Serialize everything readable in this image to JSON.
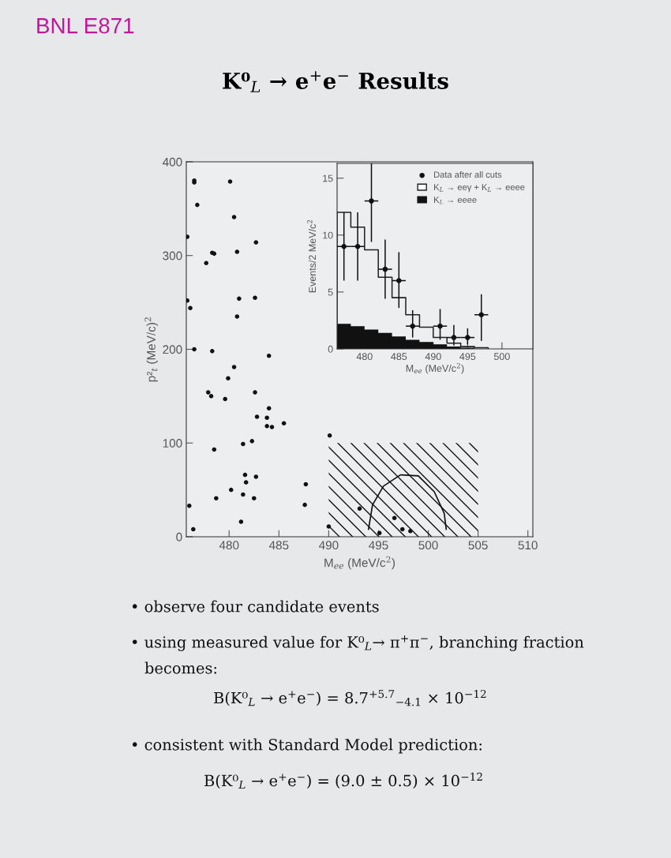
{
  "chart_data": [
    {
      "type": "scatter",
      "title": "K⁰$_{L}$ → e$^{+}$e$^{−}$ Results",
      "xlabel": "M$_{ee}$ (MeV/c$^{2}$)",
      "ylabel": "p²$_{t}$ (MeV/c)$^{2}$",
      "xlim": [
        475.7,
        510.5
      ],
      "ylim": [
        0,
        400
      ],
      "xticks": [
        480,
        485,
        490,
        495,
        500,
        505,
        510
      ],
      "yticks": [
        0,
        100,
        200,
        300,
        400
      ],
      "grid": false,
      "legend": false,
      "series": [
        {
          "marker": "circle",
          "color": "#111111",
          "x": [
            476.5,
            476.5,
            480.1,
            476.8,
            480.5,
            475.8,
            482.7,
            477.7,
            478.3,
            478.5,
            480.8,
            475.8,
            476.1,
            481.0,
            482.6,
            480.8,
            476.5,
            478.3,
            484.0,
            480.5,
            479.9,
            477.9,
            478.2,
            479.6,
            482.6,
            484.0,
            482.8,
            483.8,
            483.8,
            484.3,
            485.5,
            490.1,
            482.3,
            481.4,
            478.5,
            481.6,
            482.7,
            481.7,
            480.2,
            478.7,
            481.4,
            482.5,
            476.0,
            487.7,
            487.6,
            481.2,
            476.4,
            490.0,
            493.1,
            496.6,
            495.1,
            497.4,
            498.2
          ],
          "values": [
            380,
            378,
            379,
            354,
            341,
            320,
            314,
            292,
            303,
            302,
            304,
            252,
            244,
            254,
            255,
            235,
            200,
            198,
            193,
            181,
            169,
            154,
            150,
            147,
            154,
            137,
            128,
            127,
            118,
            117,
            121,
            108,
            102,
            99,
            93,
            66,
            64,
            58,
            50,
            41,
            45,
            41,
            33,
            56,
            34,
            16,
            8,
            11,
            30,
            20,
            4,
            8,
            6
          ]
        },
        {
          "type": "area",
          "color": "#111111",
          "x": [
            490,
            505
          ],
          "values": [
            100,
            100
          ]
        },
        {
          "type": "line",
          "color": "#111111",
          "x": [
            494.0,
            494.4,
            495.5,
            497.2,
            499.0,
            500.6,
            501.6,
            501.8
          ],
          "values": [
            8,
            34,
            54,
            66,
            65,
            48,
            25,
            8
          ]
        }
      ],
      "annotations": [
        "BNL E871",
        "• observe four candidate events",
        "• using measured value for K⁰$_{L}$→ π$^{+}$π$^{−}$, branching fraction",
        "becomes:",
        "B(K⁰$_{L}$ → e$^{+}$e$^{−}$) = 8.7$^{+5.7}$$_{−4.1}$ × 10$^{−12}$",
        "• consistent with Standard Model prediction:",
        "B(K⁰$_{L}$ → e$^{+}$e$^{−}$) = (9.0 ± 0.5) × 10$^{−12}$"
      ]
    },
    {
      "type": "histogram",
      "xlabel": "M$_{ee}$ (MeV/c$^{2}$)",
      "ylabel": "Events/2 MeV/c$^{2}$",
      "xlim": [
        476,
        504.5
      ],
      "ylim": [
        0,
        16.3
      ],
      "xticks": [
        480,
        485,
        490,
        495,
        500
      ],
      "yticks": [
        0,
        5,
        10,
        15
      ],
      "grid": false,
      "legend": "top right",
      "series": [
        {
          "name": "K$_{L}$ → eeee",
          "color": "#111111",
          "bins": [
            476,
            478,
            480,
            482,
            484,
            486,
            488,
            490,
            492,
            494,
            496
          ],
          "values": [
            2.2,
            2.0,
            1.7,
            1.4,
            1.1,
            0.8,
            0.6,
            0.4,
            0.2,
            0.1
          ]
        },
        {
          "type": "step",
          "name": "K$_{L}$ → eeγ + K$_{L}$ → eeee",
          "color": "#222222",
          "x": [
            476,
            478,
            480,
            482,
            484,
            486,
            488,
            490,
            492,
            494,
            496,
            498
          ],
          "values": [
            12,
            10.7,
            8.7,
            6.3,
            4.5,
            3.0,
            1.9,
            1.0,
            0.5,
            0.2,
            0.1,
            0
          ]
        },
        {
          "type": "scatter",
          "marker": "circle",
          "name": "Data after all cuts",
          "color": "#111111",
          "x": [
            477,
            479,
            481,
            483,
            485,
            487,
            491,
            493,
            495,
            497
          ],
          "values": [
            9,
            9,
            13,
            7,
            6,
            2,
            2,
            1,
            1,
            3
          ],
          "errors": [
            [
              6,
              12
            ],
            [
              6,
              12
            ],
            [
              9.4,
              16.3
            ],
            [
              4.4,
              9.6
            ],
            [
              3.6,
              8.5
            ],
            [
              1.0,
              3.4
            ],
            [
              0.8,
              3.5
            ],
            [
              0.3,
              2.1
            ],
            [
              0.4,
              1.8
            ],
            [
              0.7,
              4.8
            ]
          ],
          "xerrors": [
            1,
            1,
            1,
            1,
            1,
            1,
            1,
            1,
            1,
            1
          ]
        }
      ]
    }
  ]
}
